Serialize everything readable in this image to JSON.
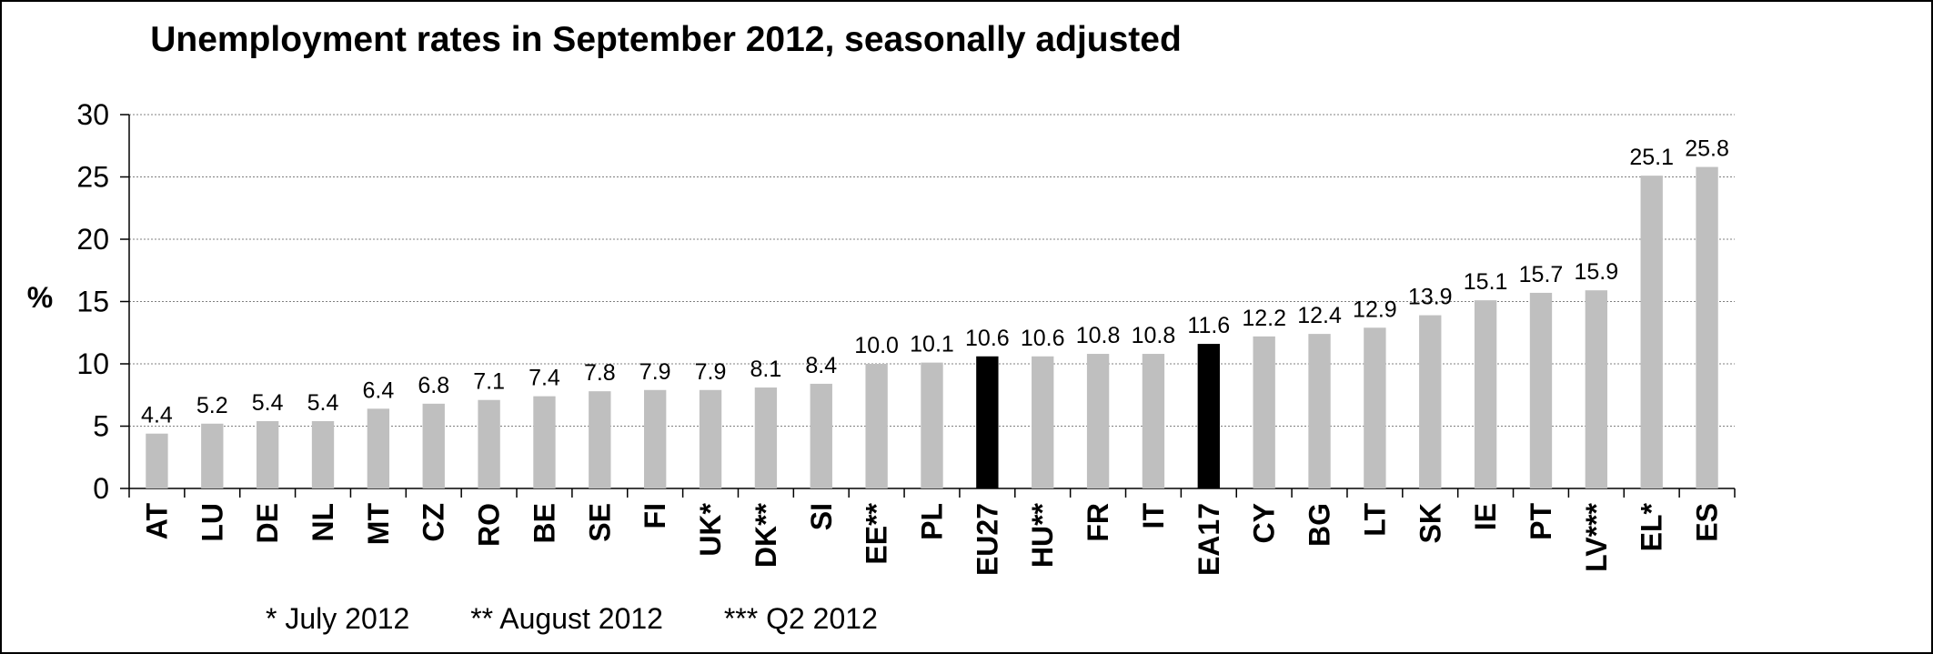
{
  "chart_data": {
    "type": "bar",
    "title": "Unemployment rates in September 2012, seasonally adjusted",
    "xlabel": "",
    "ylabel": "%",
    "ylim": [
      0,
      30
    ],
    "yticks": [
      0,
      5,
      10,
      15,
      20,
      25,
      30
    ],
    "grid": true,
    "categories": [
      "AT",
      "LU",
      "DE",
      "NL",
      "MT",
      "CZ",
      "RO",
      "BE",
      "SE",
      "FI",
      "UK*",
      "DK**",
      "SI",
      "EE**",
      "PL",
      "EU27",
      "HU**",
      "FR",
      "IT",
      "EA17",
      "CY",
      "BG",
      "LT",
      "SK",
      "IE",
      "PT",
      "LV***",
      "EL*",
      "ES"
    ],
    "values": [
      4.4,
      5.2,
      5.4,
      5.4,
      6.4,
      6.8,
      7.1,
      7.4,
      7.8,
      7.9,
      7.9,
      8.1,
      8.4,
      10.0,
      10.1,
      10.6,
      10.6,
      10.8,
      10.8,
      11.6,
      12.2,
      12.4,
      12.9,
      13.9,
      15.1,
      15.7,
      15.9,
      25.1,
      25.8
    ],
    "value_labels": [
      "4.4",
      "5.2",
      "5.4",
      "5.4",
      "6.4",
      "6.8",
      "7.1",
      "7.4",
      "7.8",
      "7.9",
      "7.9",
      "8.1",
      "8.4",
      "10.0",
      "10.1",
      "10.6",
      "10.6",
      "10.8",
      "10.8",
      "11.6",
      "12.2",
      "12.4",
      "12.9",
      "13.9",
      "15.1",
      "15.7",
      "15.9",
      "25.1",
      "25.8"
    ],
    "highlight": [
      "EU27",
      "EA17"
    ],
    "colors": {
      "bar": "#bfbfbf",
      "highlight": "#000000",
      "grid": "#808080",
      "axis": "#000000"
    }
  },
  "notes": [
    "* July 2012",
    "** August 2012",
    "*** Q2 2012"
  ]
}
